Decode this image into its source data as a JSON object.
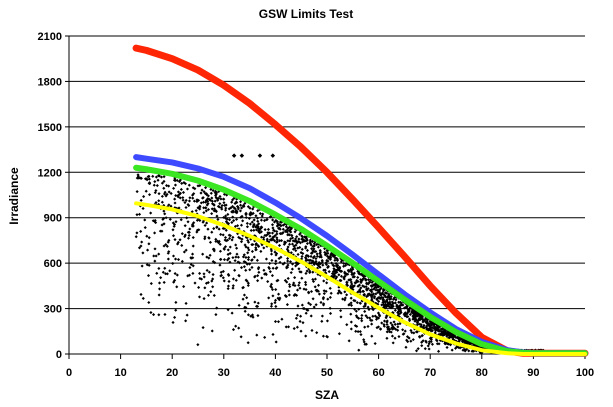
{
  "chart_data": {
    "type": "scatter",
    "title": "GSW Limits Test",
    "xlabel": "SZA",
    "ylabel": "Irradiance",
    "xlim": [
      0,
      100
    ],
    "ylim": [
      0,
      2100
    ],
    "x_ticks": [
      "0",
      "10",
      "20",
      "30",
      "40",
      "50",
      "60",
      "70",
      "80",
      "90",
      "100"
    ],
    "y_ticks": [
      "0",
      "300",
      "600",
      "900",
      "1200",
      "1500",
      "1800",
      "2100"
    ],
    "grid": "horizontal",
    "legend": "none",
    "colors": {
      "background": "#ffffff",
      "grid": "#000000",
      "axis": "#000000",
      "text": "#000000",
      "scatter": "#000000",
      "red": "#ff2200",
      "blue": "#3a46ff",
      "green": "#37e61f",
      "yellow": "#ffff00"
    },
    "limit_curves": [
      {
        "color_name": "red",
        "x": [
          13,
          15,
          20,
          25,
          30,
          35,
          40,
          45,
          50,
          55,
          60,
          65,
          70,
          75,
          80,
          85,
          88,
          90,
          92,
          95,
          100
        ],
        "y": [
          2020,
          2005,
          1950,
          1875,
          1775,
          1655,
          1515,
          1365,
          1200,
          1020,
          835,
          645,
          450,
          270,
          110,
          20,
          5,
          5,
          5,
          5,
          5
        ]
      },
      {
        "color_name": "blue",
        "x": [
          13,
          15,
          20,
          25,
          30,
          35,
          40,
          45,
          50,
          55,
          60,
          65,
          70,
          75,
          80,
          85,
          88,
          90,
          92,
          95,
          100
        ],
        "y": [
          1300,
          1290,
          1265,
          1225,
          1170,
          1095,
          1000,
          895,
          780,
          655,
          525,
          395,
          275,
          165,
          80,
          25,
          10,
          5,
          5,
          5,
          5
        ]
      },
      {
        "color_name": "green",
        "x": [
          13,
          15,
          20,
          25,
          30,
          35,
          40,
          45,
          50,
          55,
          60,
          65,
          70,
          75,
          80,
          85,
          88,
          90,
          92,
          95,
          100
        ],
        "y": [
          1230,
          1220,
          1190,
          1145,
          1085,
          1010,
          920,
          825,
          715,
          600,
          480,
          360,
          245,
          145,
          65,
          18,
          8,
          5,
          5,
          5,
          5
        ]
      },
      {
        "color_name": "yellow",
        "x": [
          13,
          15,
          20,
          25,
          30,
          35,
          40,
          45,
          50,
          55,
          60,
          65,
          70,
          75,
          80,
          85,
          88,
          90,
          92,
          95,
          100
        ],
        "y": [
          995,
          985,
          955,
          910,
          850,
          780,
          700,
          610,
          510,
          405,
          305,
          210,
          130,
          70,
          25,
          5,
          0,
          0,
          0,
          0,
          0
        ]
      }
    ],
    "outlier_points": [
      {
        "x": 32,
        "y": 1310
      },
      {
        "x": 33.5,
        "y": 1310
      },
      {
        "x": 37,
        "y": 1310
      },
      {
        "x": 39.5,
        "y": 1310
      }
    ],
    "scatter_cloud": {
      "x_min": 13,
      "x_max": 92,
      "count": 2600
    }
  }
}
